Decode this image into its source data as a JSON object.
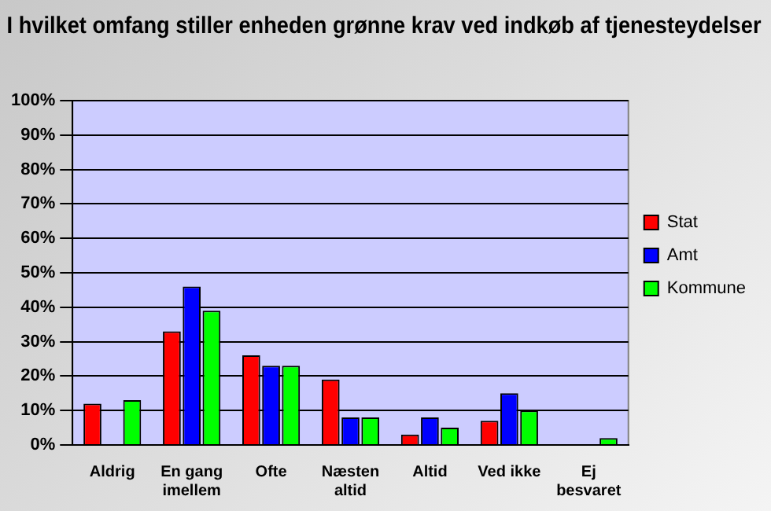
{
  "chart_data": {
    "type": "bar",
    "title": "I hvilket omfang stiller enheden grønne krav ved indkøb af tjenesteydelser",
    "categories": [
      "Aldrig",
      "En gang imellem",
      "Ofte",
      "Næsten altid",
      "Altid",
      "Ved ikke",
      "Ej besvaret"
    ],
    "series": [
      {
        "name": "Stat",
        "color": "#ff0000",
        "values": [
          12,
          33,
          26,
          19,
          3,
          7,
          0
        ]
      },
      {
        "name": "Amt",
        "color": "#0000ff",
        "values": [
          0,
          46,
          23,
          8,
          8,
          15,
          0
        ]
      },
      {
        "name": "Kommune",
        "color": "#00ff00",
        "values": [
          13,
          39,
          23,
          8,
          5,
          10,
          2
        ]
      }
    ],
    "ylim": [
      0,
      100
    ],
    "yticks": [
      {
        "value": 0,
        "label": "0%"
      },
      {
        "value": 10,
        "label": "10%"
      },
      {
        "value": 20,
        "label": "20%"
      },
      {
        "value": 30,
        "label": "30%"
      },
      {
        "value": 40,
        "label": "40%"
      },
      {
        "value": 50,
        "label": "50%"
      },
      {
        "value": 60,
        "label": "60%"
      },
      {
        "value": 70,
        "label": "70%"
      },
      {
        "value": 80,
        "label": "80%"
      },
      {
        "value": 90,
        "label": "90%"
      },
      {
        "value": 100,
        "label": "100%"
      }
    ],
    "grid": "y",
    "legend": "right"
  }
}
